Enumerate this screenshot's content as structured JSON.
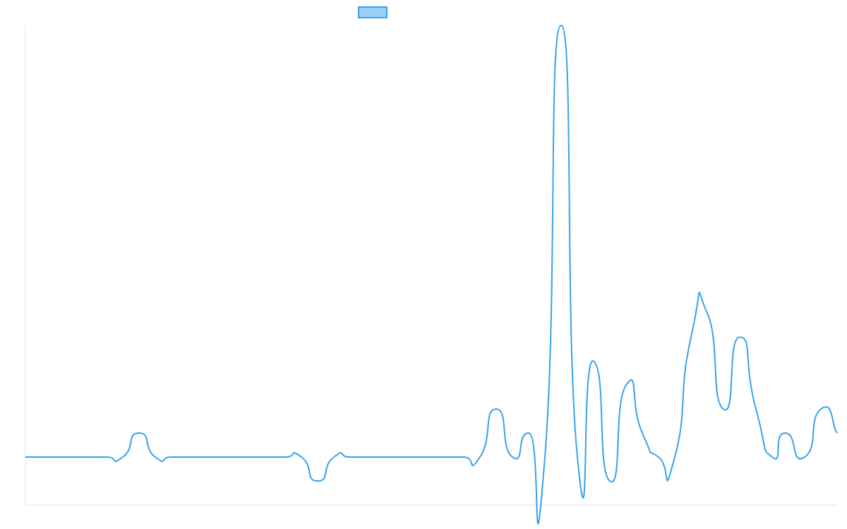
{
  "chart_data": {
    "type": "line",
    "title": "",
    "xlabel": "",
    "ylabel": "",
    "grid": false,
    "legend": {
      "position": "top-center",
      "entries": [
        {
          "label": "",
          "fill": "#9ad0f5",
          "stroke": "#36a2eb"
        }
      ]
    },
    "xlim": [
      0,
      50
    ],
    "ylim": [
      -2,
      18
    ],
    "x": [
      0,
      1,
      2,
      3,
      4,
      5,
      6,
      7,
      8,
      9,
      10,
      11,
      12,
      13,
      14,
      15,
      16,
      17,
      18,
      19,
      20,
      21,
      22,
      23,
      24,
      25,
      26,
      27,
      28,
      29,
      30,
      31,
      32,
      33,
      34,
      35,
      36,
      37,
      38,
      39,
      40,
      41,
      42,
      43,
      44,
      45,
      46,
      46.8,
      48,
      49,
      50
    ],
    "series": [
      {
        "name": "",
        "color": "#36a2eb",
        "values": [
          0,
          0,
          0,
          0,
          0,
          0,
          0,
          1,
          0,
          0,
          0,
          0,
          0,
          0,
          0,
          0,
          0,
          0,
          -1,
          0,
          0,
          0,
          0,
          0,
          0,
          0,
          0,
          0,
          0,
          2,
          0,
          1,
          0,
          18,
          0,
          4,
          -1,
          3,
          1,
          0,
          0,
          5,
          6,
          2,
          5,
          2,
          0,
          1,
          0,
          2,
          1
        ]
      }
    ]
  }
}
